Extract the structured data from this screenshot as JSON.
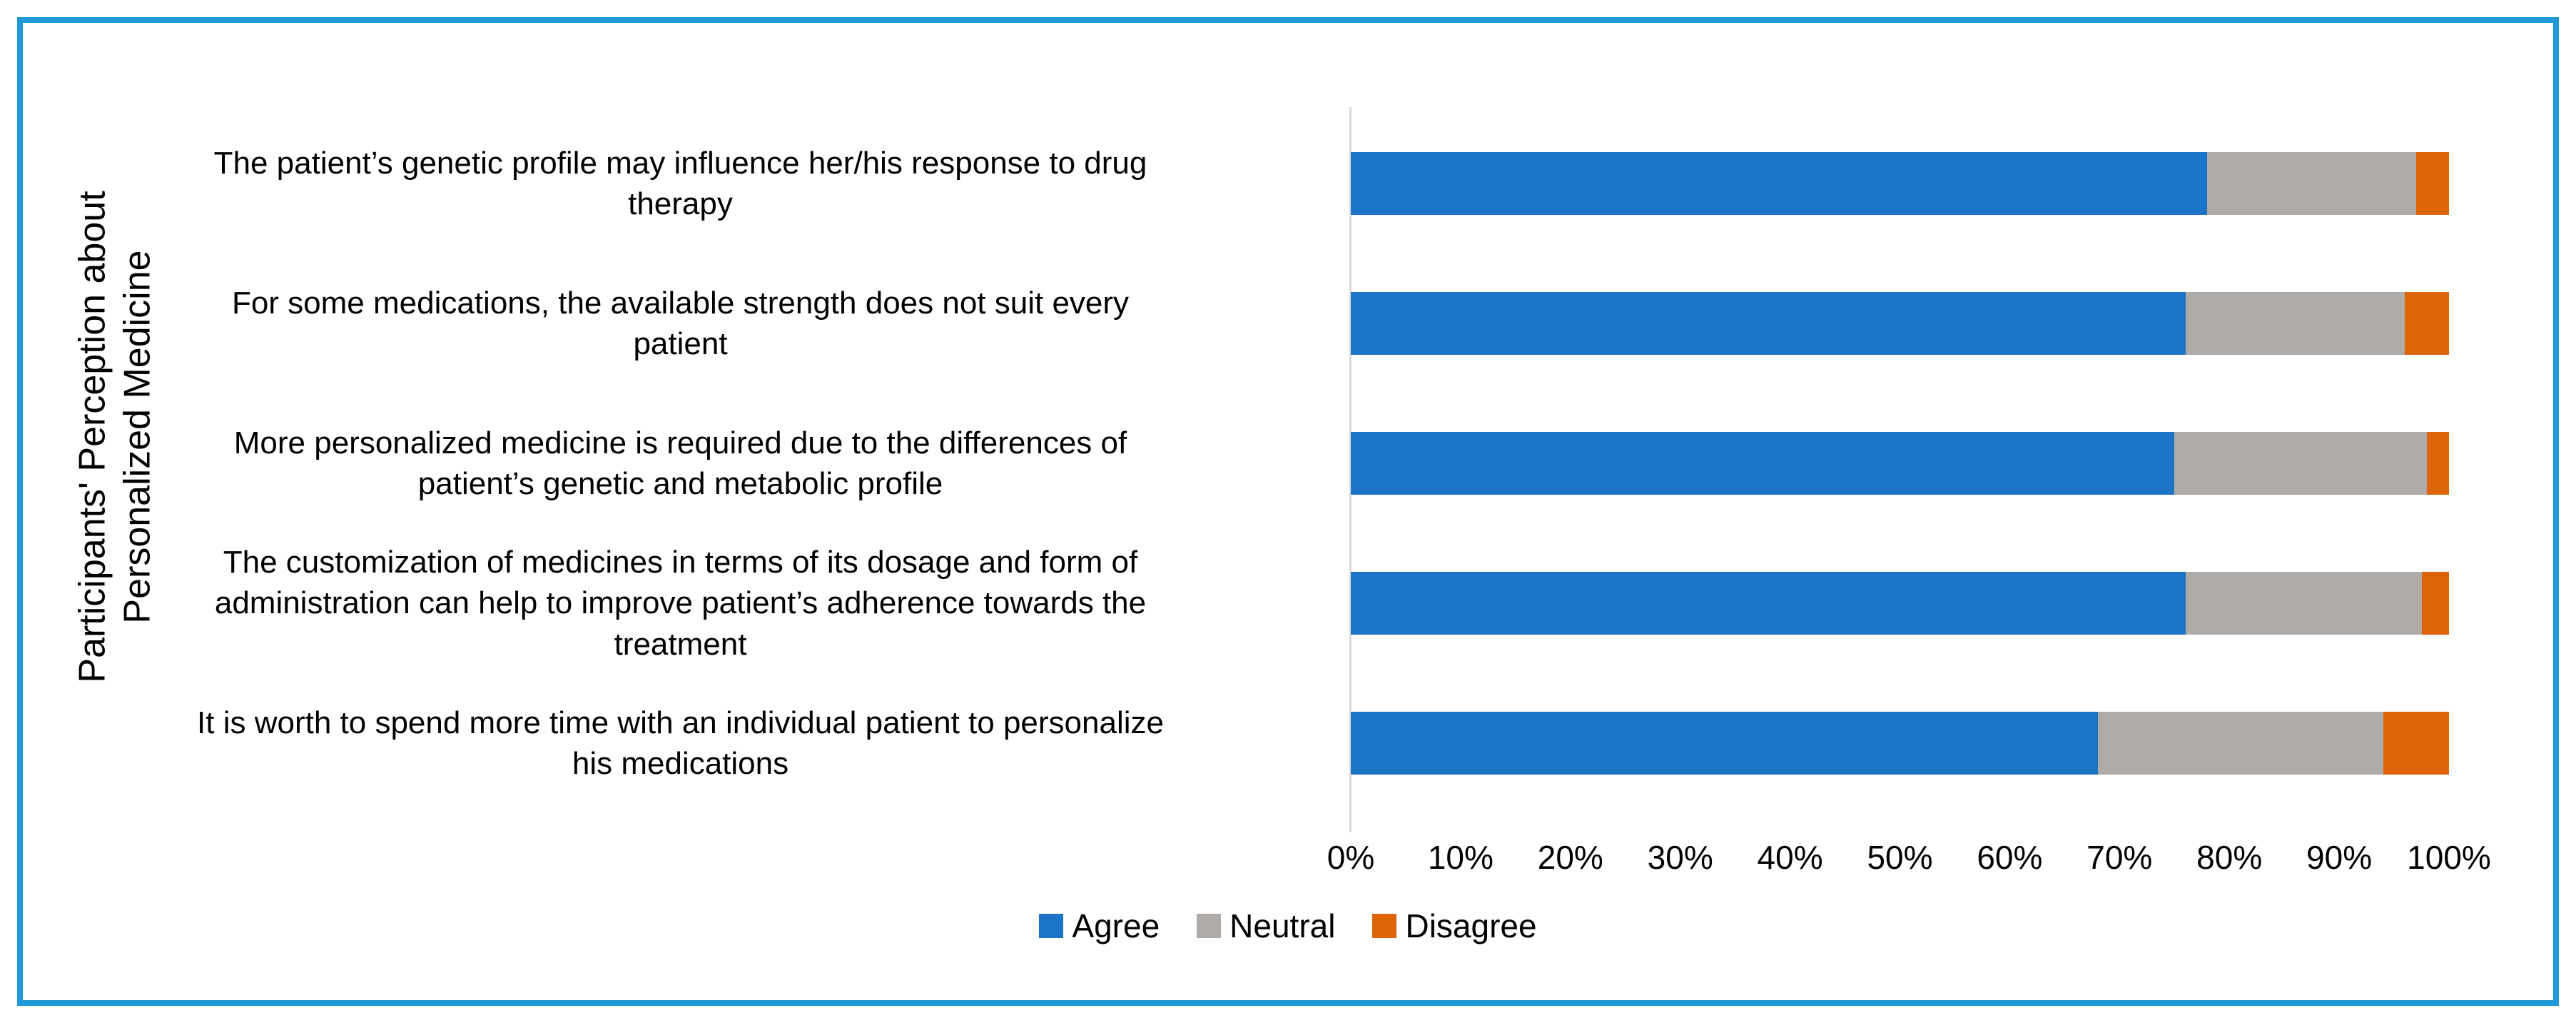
{
  "frame": {
    "border_color": "#209AD6"
  },
  "chart_data": {
    "type": "bar",
    "orientation": "horizontal",
    "stacked": true,
    "title": "",
    "xlabel": "",
    "ylabel": "Participants' Perception about Personalized Medicine",
    "ylabel_lines": [
      "Participants' Perception about",
      "Personalized Medicine"
    ],
    "categories": [
      "The patient’s genetic profile may influence her/his response to drug therapy",
      "For some medications, the available strength does not  suit every patient",
      "More personalized medicine is required due to the differences of patient’s genetic and metabolic profile",
      "The customization of medicines in terms of its dosage and form of administration can help to improve patient’s adherence towards the treatment",
      "It is worth to spend more time with an individual patient to personalize his medications"
    ],
    "category_wrap_lines": [
      [
        "The patient’s genetic profile may influence her/his response to drug",
        "therapy"
      ],
      [
        "For some medications, the available strength does not  suit every",
        "patient"
      ],
      [
        "More personalized medicine is required due to the differences of",
        "patient’s genetic and metabolic profile"
      ],
      [
        "The customization of medicines in terms of its dosage and form of",
        "administration can help to improve patient’s adherence towards the",
        "treatment"
      ],
      [
        "It is worth to spend more time with an individual patient to personalize",
        "his medications"
      ]
    ],
    "series": [
      {
        "name": "Agree",
        "color": "#1B74C5",
        "values": [
          78,
          76,
          75,
          76,
          68
        ]
      },
      {
        "name": "Neutral",
        "color": "#AFABA9",
        "values": [
          19,
          20,
          23,
          21.5,
          26
        ]
      },
      {
        "name": "Disagree",
        "color": "#DD6407",
        "values": [
          3,
          4,
          2,
          2.5,
          6
        ]
      }
    ],
    "xlim": [
      0,
      100
    ],
    "x_ticks": [
      "0%",
      "10%",
      "20%",
      "30%",
      "40%",
      "50%",
      "60%",
      "70%",
      "80%",
      "90%",
      "100%"
    ],
    "grid": false,
    "axis_line_color": "#D9D9D9",
    "legend_position": "bottom-center"
  }
}
